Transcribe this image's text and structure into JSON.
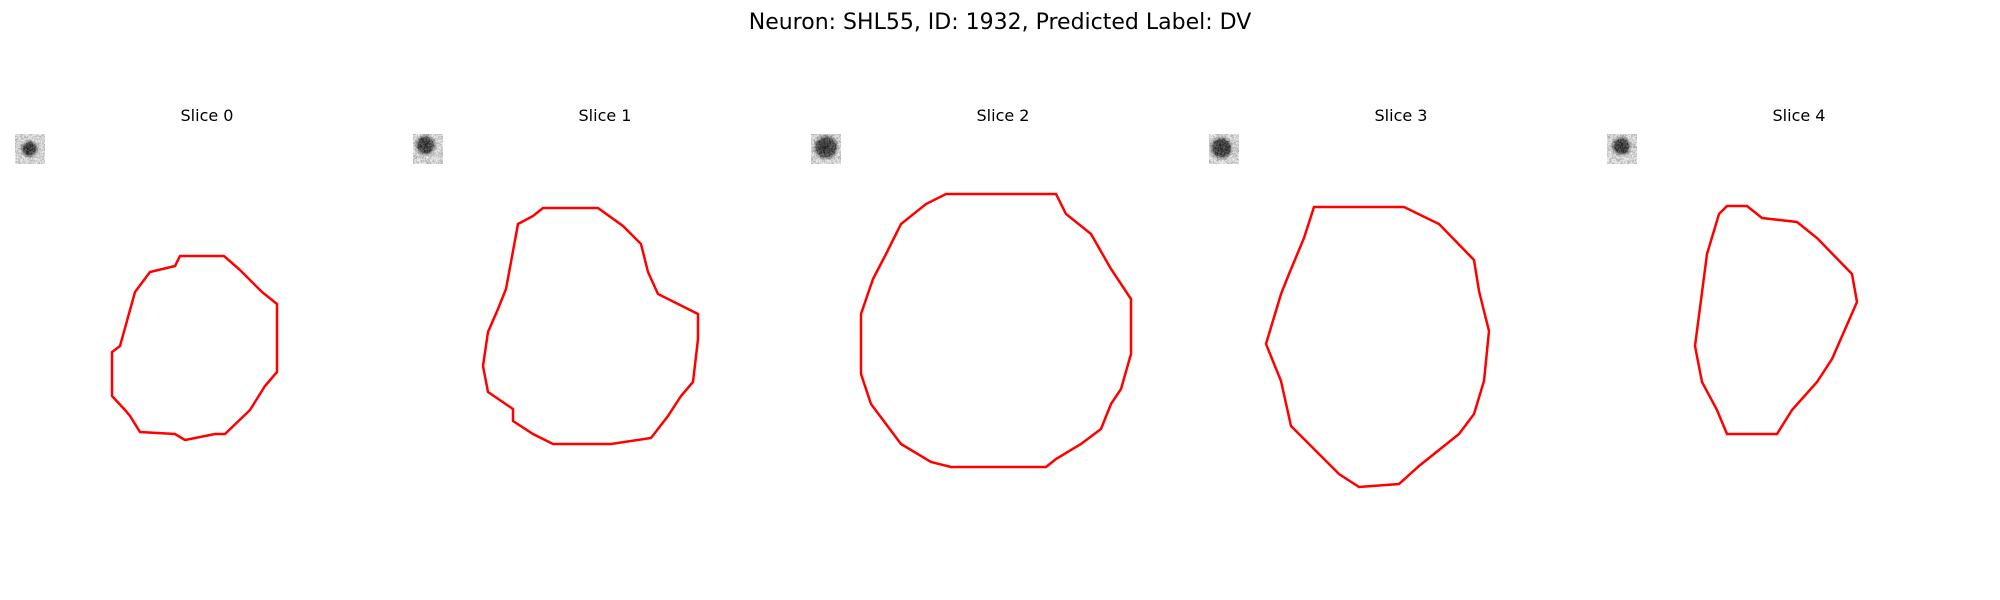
{
  "figure": {
    "title": "Neuron: SHL55, ID: 1932, Predicted Label: DV"
  },
  "panels": [
    {
      "title": "Slice 0",
      "contour_color": "#ff0000"
    },
    {
      "title": "Slice 1",
      "contour_color": "#ff0000"
    },
    {
      "title": "Slice 2",
      "contour_color": "#ff0000"
    },
    {
      "title": "Slice 3",
      "contour_color": "#ff0000"
    },
    {
      "title": "Slice 4",
      "contour_color": "#ff0000"
    }
  ],
  "image_style": {
    "colormap": "grayscale",
    "blob": "dark"
  }
}
